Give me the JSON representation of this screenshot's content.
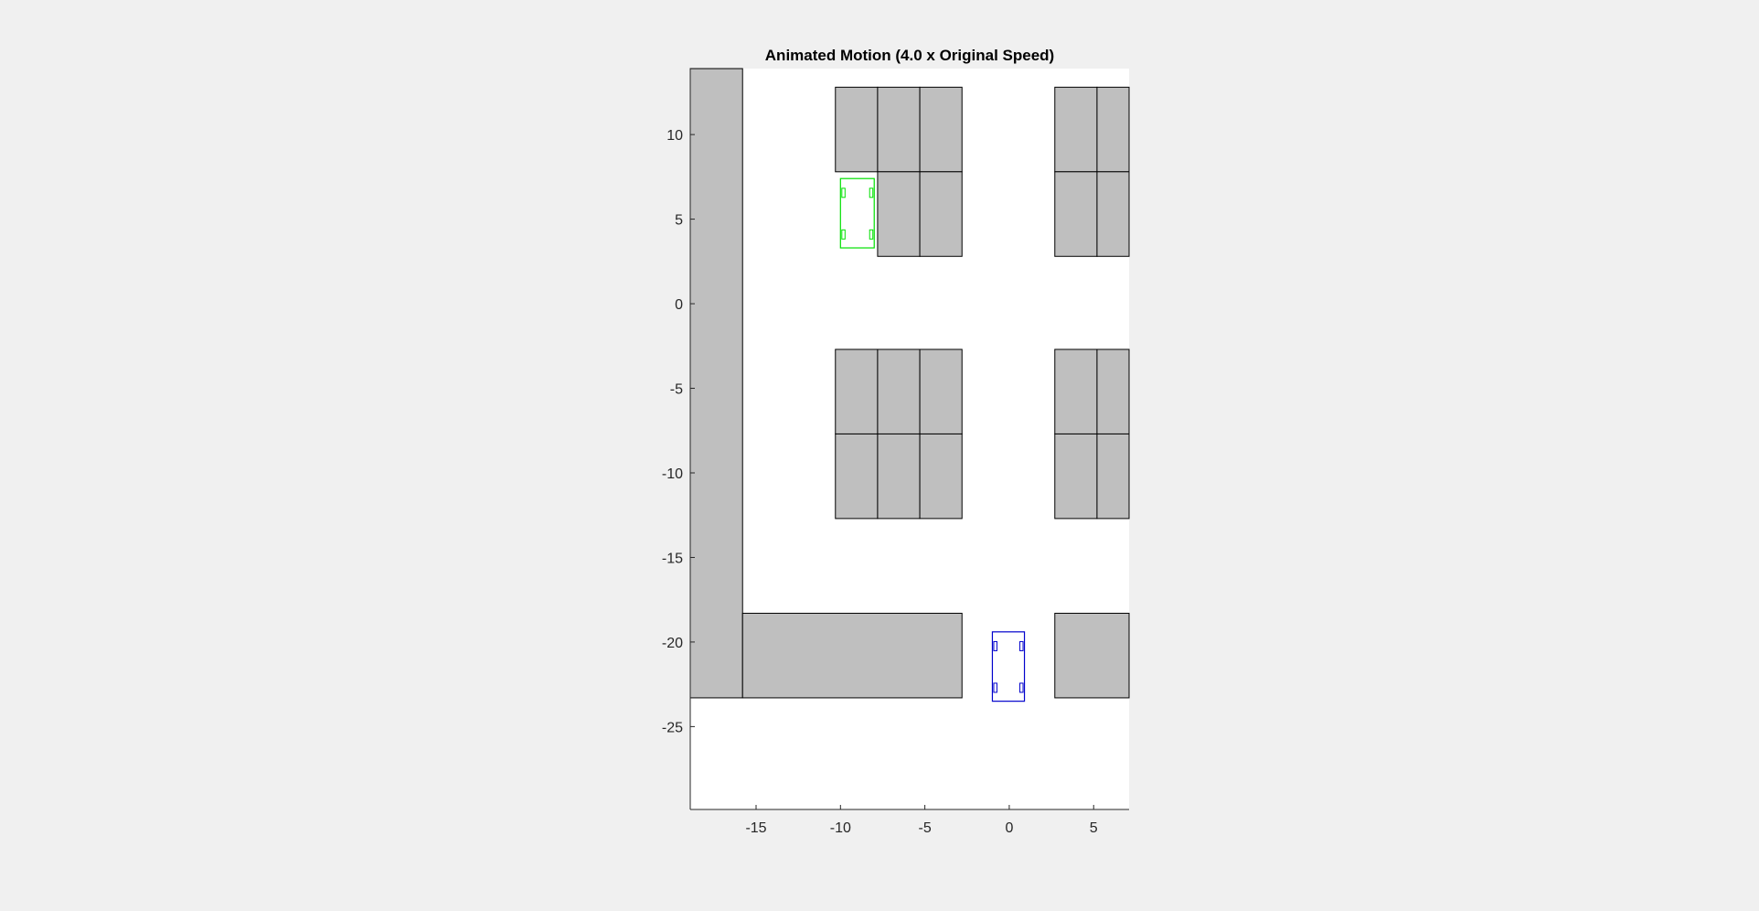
{
  "chart_data": {
    "type": "scatter",
    "title": "Animated Motion (4.0 x Original Speed)",
    "xlabel": "",
    "ylabel": "",
    "xlim": [
      -18.9,
      7.1
    ],
    "ylim": [
      -29.9,
      13.9
    ],
    "x_ticks": [
      -15,
      -10,
      -5,
      0,
      5
    ],
    "y_ticks": [
      10,
      5,
      0,
      -5,
      -10,
      -15,
      -20,
      -25
    ],
    "grid": false,
    "axes_background": "#ffffff",
    "figure_background": "#f0f0f0",
    "obstacle_color": "#bfbfbf",
    "obstacles": [
      {
        "x": [
          -18.9,
          -15.8
        ],
        "y": [
          -23.3,
          13.9
        ]
      },
      {
        "x": [
          -15.8,
          -2.8
        ],
        "y": [
          -23.3,
          -18.3
        ]
      },
      {
        "x": [
          2.7,
          7.1
        ],
        "y": [
          -23.3,
          -18.3
        ]
      },
      {
        "x": [
          -10.3,
          -7.8
        ],
        "y": [
          7.8,
          12.8
        ]
      },
      {
        "x": [
          -7.8,
          -5.3
        ],
        "y": [
          7.8,
          12.8
        ]
      },
      {
        "x": [
          -5.3,
          -2.8
        ],
        "y": [
          7.8,
          12.8
        ]
      },
      {
        "x": [
          -7.8,
          -5.3
        ],
        "y": [
          2.8,
          7.8
        ]
      },
      {
        "x": [
          -5.3,
          -2.8
        ],
        "y": [
          2.8,
          7.8
        ]
      },
      {
        "x": [
          2.7,
          5.2
        ],
        "y": [
          7.8,
          12.8
        ]
      },
      {
        "x": [
          5.2,
          7.1
        ],
        "y": [
          7.8,
          12.8
        ]
      },
      {
        "x": [
          2.7,
          5.2
        ],
        "y": [
          2.8,
          7.8
        ]
      },
      {
        "x": [
          5.2,
          7.1
        ],
        "y": [
          2.8,
          7.8
        ]
      },
      {
        "x": [
          -10.3,
          -7.8
        ],
        "y": [
          -7.7,
          -2.7
        ]
      },
      {
        "x": [
          -7.8,
          -5.3
        ],
        "y": [
          -7.7,
          -2.7
        ]
      },
      {
        "x": [
          -5.3,
          -2.8
        ],
        "y": [
          -7.7,
          -2.7
        ]
      },
      {
        "x": [
          -10.3,
          -7.8
        ],
        "y": [
          -12.7,
          -7.7
        ]
      },
      {
        "x": [
          -7.8,
          -5.3
        ],
        "y": [
          -12.7,
          -7.7
        ]
      },
      {
        "x": [
          -5.3,
          -2.8
        ],
        "y": [
          -12.7,
          -7.7
        ]
      },
      {
        "x": [
          2.7,
          5.2
        ],
        "y": [
          -7.7,
          -2.7
        ]
      },
      {
        "x": [
          5.2,
          7.1
        ],
        "y": [
          -7.7,
          -2.7
        ]
      },
      {
        "x": [
          2.7,
          5.2
        ],
        "y": [
          -12.7,
          -7.7
        ]
      },
      {
        "x": [
          5.2,
          7.1
        ],
        "y": [
          -12.7,
          -7.7
        ]
      }
    ],
    "vehicles": [
      {
        "color": "#00e000",
        "x": [
          -10.0,
          -8.0
        ],
        "y": [
          3.3,
          7.4
        ]
      },
      {
        "color": "#0000cc",
        "x": [
          -1.0,
          0.9
        ],
        "y": [
          -23.5,
          -19.4
        ]
      }
    ]
  }
}
